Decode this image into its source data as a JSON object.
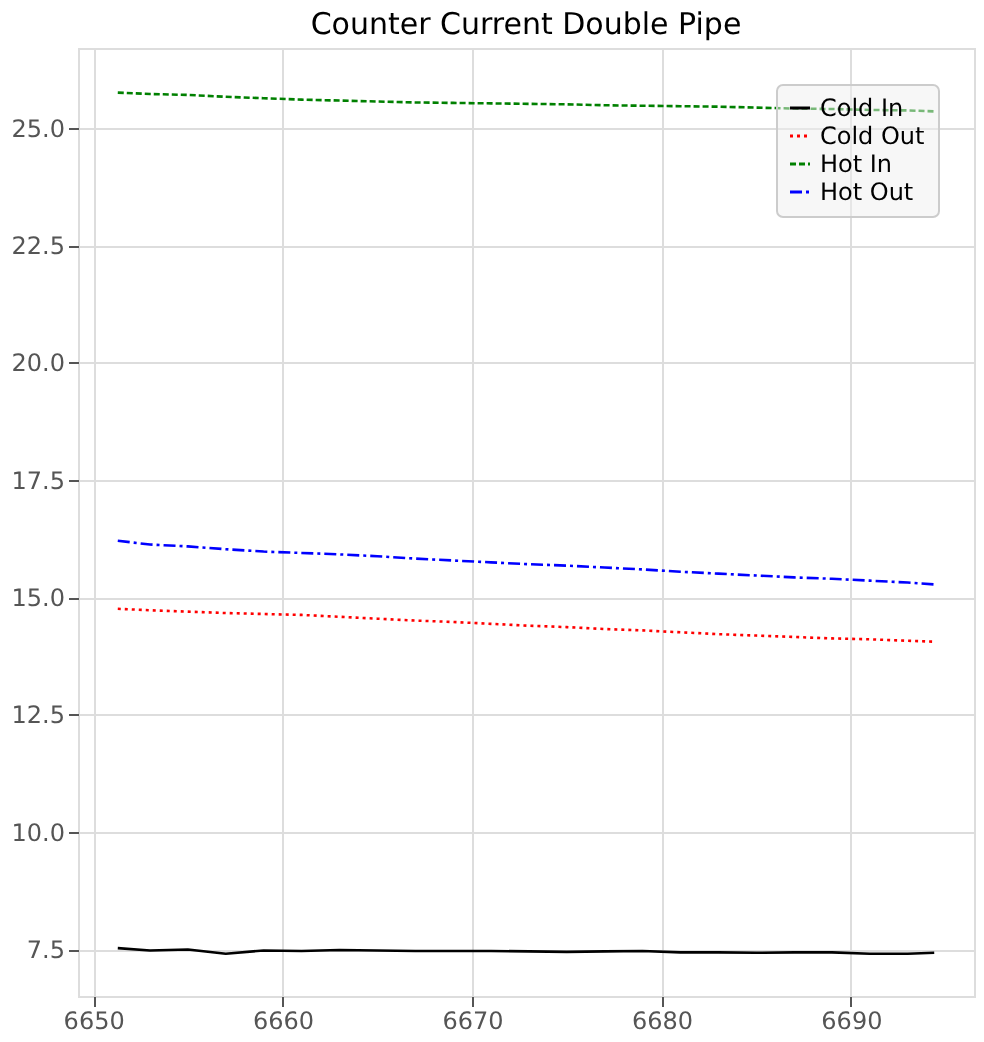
{
  "chart_data": {
    "type": "line",
    "title": "Counter Current Double Pipe",
    "x": [
      6651.3,
      6653,
      6655,
      6657,
      6659,
      6661,
      6663,
      6665,
      6667,
      6669,
      6671,
      6673,
      6675,
      6677,
      6679,
      6681,
      6683,
      6685,
      6687,
      6689,
      6691,
      6693,
      6694.4
    ],
    "series": [
      {
        "name": "Cold In",
        "color": "#000000",
        "line_style": "solid",
        "values": [
          7.52,
          7.47,
          7.49,
          7.4,
          7.47,
          7.46,
          7.48,
          7.47,
          7.46,
          7.46,
          7.46,
          7.45,
          7.44,
          7.45,
          7.46,
          7.43,
          7.43,
          7.42,
          7.43,
          7.43,
          7.4,
          7.4,
          7.42
        ]
      },
      {
        "name": "Cold Out",
        "color": "#ff0000",
        "line_style": "dotted",
        "values": [
          14.75,
          14.72,
          14.69,
          14.66,
          14.64,
          14.62,
          14.58,
          14.54,
          14.5,
          14.47,
          14.43,
          14.39,
          14.36,
          14.32,
          14.29,
          14.25,
          14.21,
          14.18,
          14.15,
          14.12,
          14.1,
          14.07,
          14.05
        ]
      },
      {
        "name": "Hot In",
        "color": "#008000",
        "line_style": "dashed",
        "values": [
          25.75,
          25.72,
          25.7,
          25.66,
          25.63,
          25.6,
          25.58,
          25.56,
          25.54,
          25.53,
          25.52,
          25.51,
          25.5,
          25.48,
          25.47,
          25.46,
          25.45,
          25.43,
          25.41,
          25.4,
          25.38,
          25.37,
          25.35
        ]
      },
      {
        "name": "Hot Out",
        "color": "#0000ff",
        "line_style": "dashdot",
        "values": [
          16.2,
          16.12,
          16.08,
          16.02,
          15.97,
          15.94,
          15.91,
          15.87,
          15.82,
          15.78,
          15.74,
          15.7,
          15.67,
          15.63,
          15.59,
          15.54,
          15.5,
          15.46,
          15.42,
          15.39,
          15.35,
          15.31,
          15.27
        ]
      }
    ],
    "xlim": [
      6649.2,
      6696.5
    ],
    "ylim": [
      6.5,
      26.7
    ],
    "xticks": [
      6650,
      6660,
      6670,
      6680,
      6690
    ],
    "yticks": [
      {
        "value": 7.5,
        "label": "7.5"
      },
      {
        "value": 10,
        "label": "10.0"
      },
      {
        "value": 12.5,
        "label": "12.5"
      },
      {
        "value": 15,
        "label": "15.0"
      },
      {
        "value": 17.5,
        "label": "17.5"
      },
      {
        "value": 20,
        "label": "20.0"
      },
      {
        "value": 22.5,
        "label": "22.5"
      },
      {
        "value": 25,
        "label": "25.0"
      }
    ],
    "grid": true,
    "legend": "top right",
    "marker": "none"
  }
}
